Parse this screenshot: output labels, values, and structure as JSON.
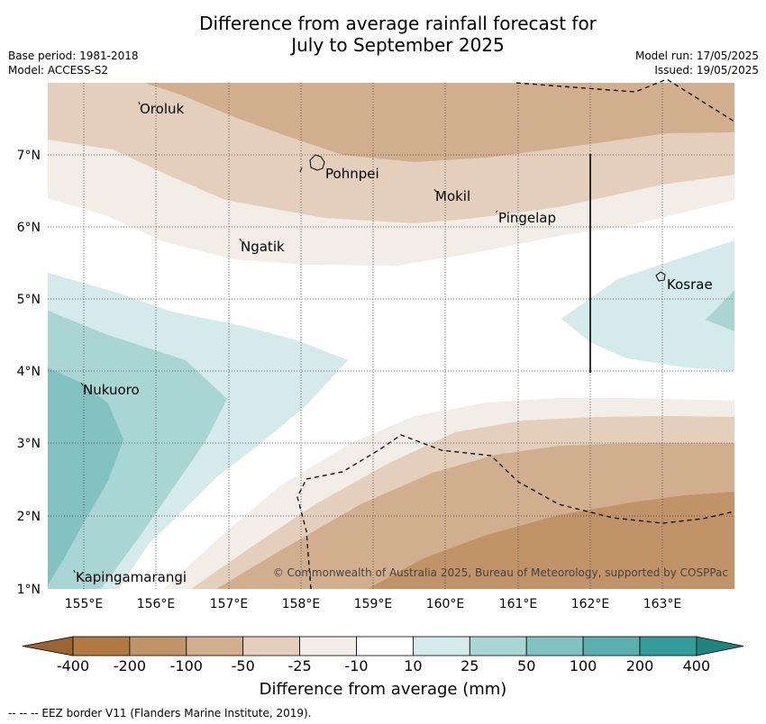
{
  "title_line1": "Difference from average rainfall forecast for",
  "title_line2": "July to September 2025",
  "base_period": "Base period: 1981-2018",
  "model": "Model: ACCESS-S2",
  "model_run": "Model run: 17/05/2025",
  "issued": "Issued: 19/05/2025",
  "lon_ticks": [
    "155°E",
    "156°E",
    "157°E",
    "158°E",
    "159°E",
    "160°E",
    "161°E",
    "162°E",
    "163°E"
  ],
  "lat_ticks": [
    "7°N",
    "6°N",
    "5°N",
    "4°N",
    "3°N",
    "2°N",
    "1°N"
  ],
  "places": {
    "oroluk": "Oroluk",
    "pohnpei": "Pohnpei",
    "mokil": "Mokil",
    "pingelap": "Pingelap",
    "ngatik": "Ngatik",
    "kosrae": "Kosrae",
    "nukuoro": "Nukuoro",
    "kapingamarangi": "Kapingamarangi"
  },
  "copyright": "© Commonwealth of Australia 2025, Bureau of Meteorology, supported by COSPPac",
  "colorbar": {
    "labels": [
      "-400",
      "-200",
      "-100",
      "-50",
      "-25",
      "-10",
      "10",
      "25",
      "50",
      "100",
      "200",
      "400"
    ],
    "colors": [
      "#b07a41",
      "#c09468",
      "#d1af8e",
      "#e4cfbc",
      "#f2ede6",
      "#ffffff",
      "#d5eaea",
      "#aad5d5",
      "#82c2c0",
      "#5bafac",
      "#359b98"
    ],
    "label": "Difference from average (mm)"
  },
  "footnote": "--  --  -- EEZ border V11 (Flanders Marine Institute, 2019)."
}
